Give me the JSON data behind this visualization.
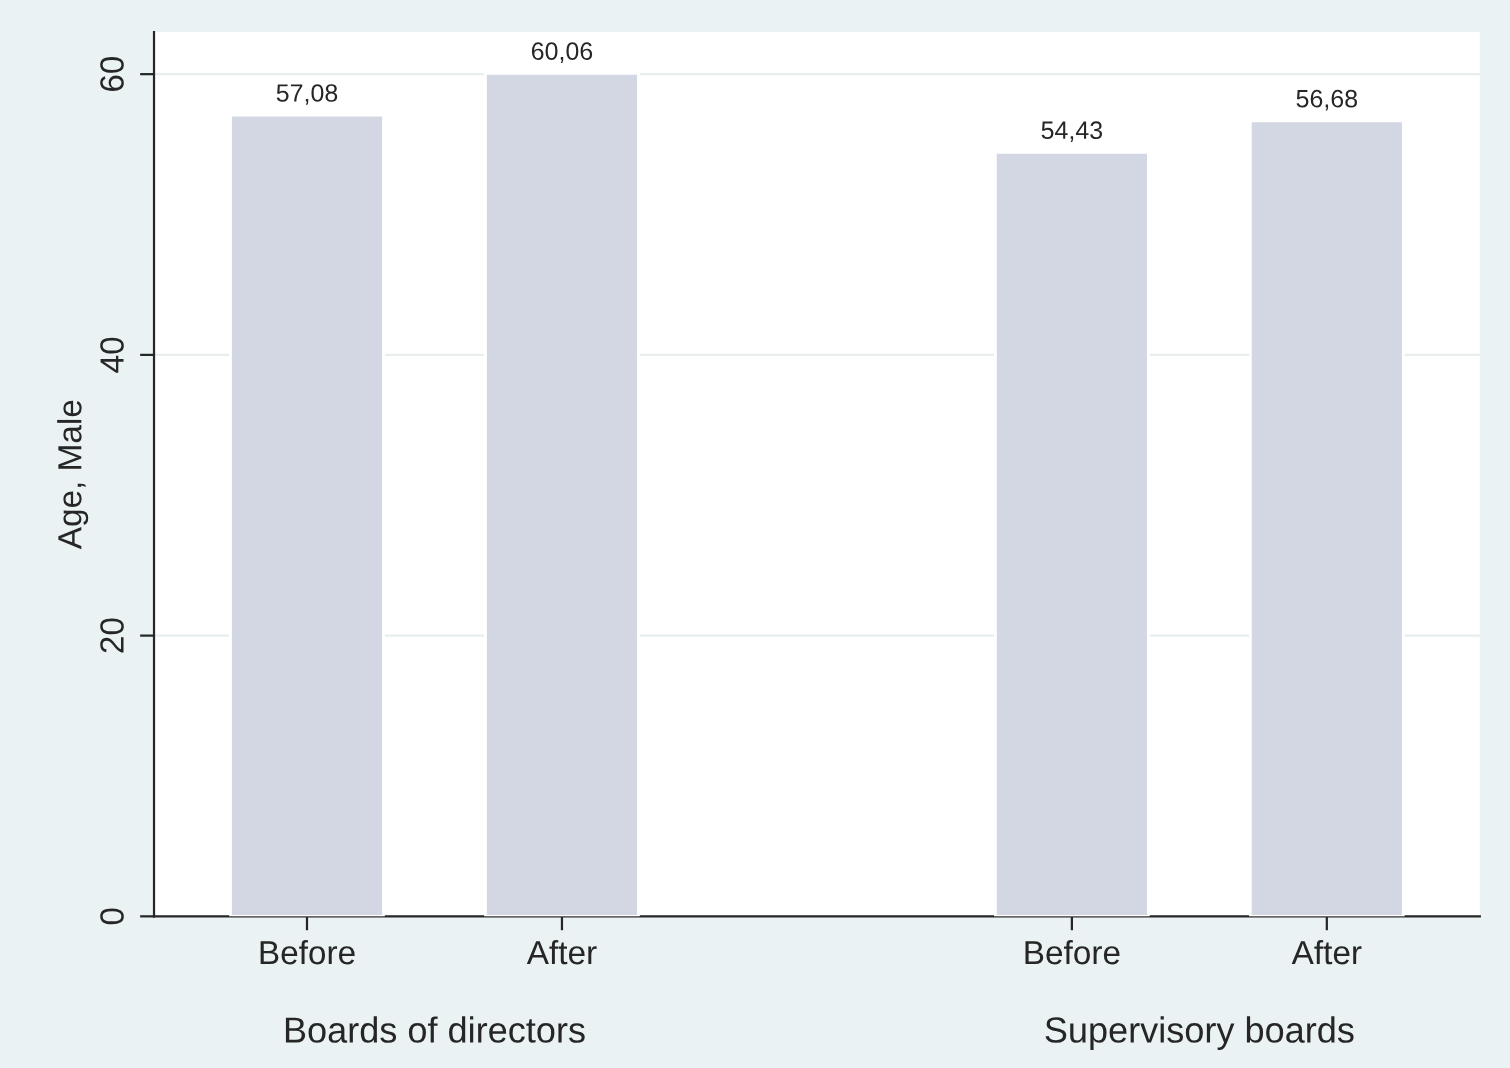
{
  "chart_data": {
    "type": "bar",
    "ylabel": "Age, Male",
    "categories": [
      "Before",
      "After",
      null,
      "Before",
      "After"
    ],
    "values": [
      57.08,
      60.06,
      null,
      54.43,
      56.68
    ],
    "value_labels": [
      "57,08",
      "60,06",
      null,
      "54,43",
      "56,68"
    ],
    "color": "#d2d7e3",
    "ylim": [
      0,
      63
    ],
    "yticks": [
      0,
      20,
      40,
      60
    ],
    "grid": "y",
    "legend": false,
    "annotations": [
      "Boards of directors",
      "Supervisory boards"
    ]
  }
}
